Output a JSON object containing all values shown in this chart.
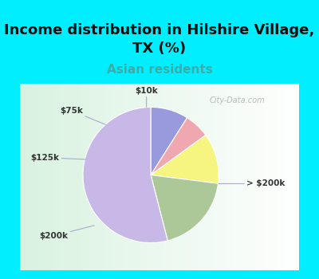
{
  "title": "Income distribution in Hilshire Village,\nTX (%)",
  "subtitle": "Asian residents",
  "subtitle_color": "#3aada8",
  "title_fontsize": 13,
  "subtitle_fontsize": 11,
  "labels": [
    "$10k",
    "$75k",
    "$125k",
    "$200k",
    "> $200k"
  ],
  "values": [
    9,
    6,
    12,
    19,
    54
  ],
  "colors": [
    "#9999dd",
    "#f0a8b0",
    "#f5f580",
    "#adc898",
    "#c8b8e8"
  ],
  "startangle": 90,
  "background_cyan": "#00eeff",
  "watermark": "City-Data.com",
  "figsize": [
    4.0,
    3.5
  ],
  "dpi": 100
}
